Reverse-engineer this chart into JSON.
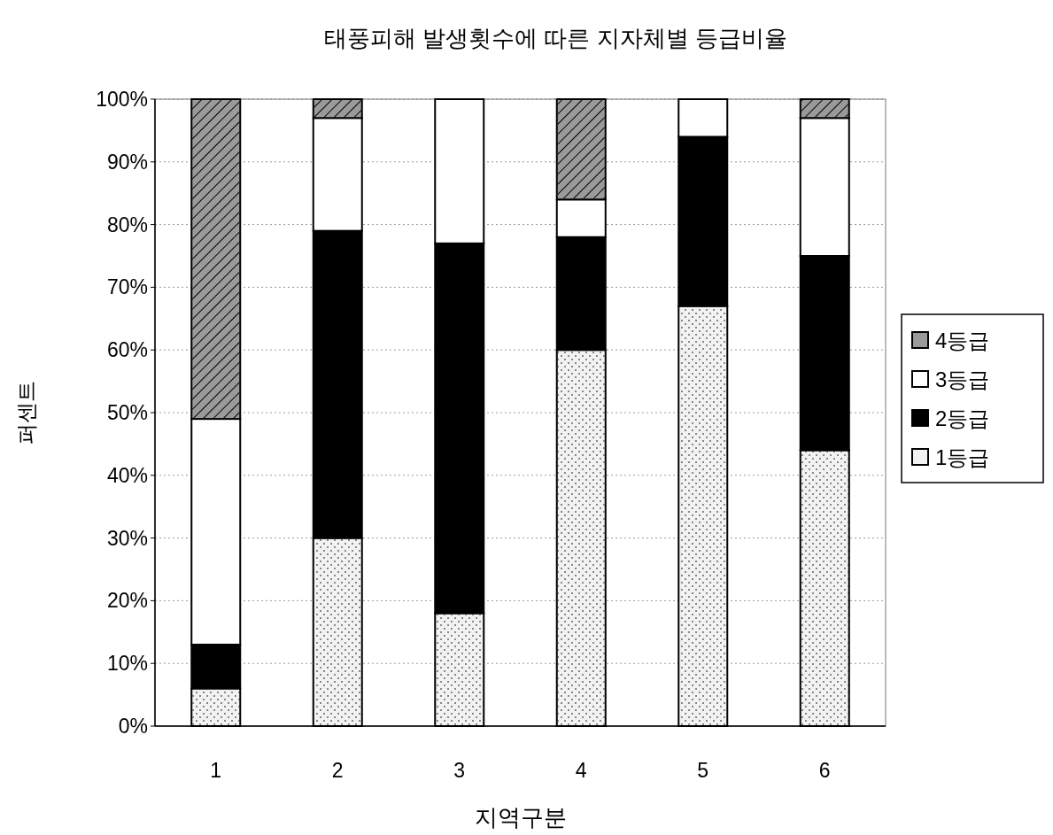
{
  "chart_data": {
    "type": "bar",
    "title": "태풍피해 발생횟수에 따른 지자체별 등급비율",
    "xlabel": "지역구분",
    "ylabel": "퍼센트",
    "categories": [
      "1",
      "2",
      "3",
      "4",
      "5",
      "6"
    ],
    "stacked": true,
    "series": [
      {
        "name": "1등급",
        "color": "#f2f2f2",
        "values": [
          6,
          30,
          18,
          60,
          67,
          44
        ]
      },
      {
        "name": "2등급",
        "color": "#000000",
        "values": [
          7,
          49,
          59,
          18,
          27,
          31
        ]
      },
      {
        "name": "3등급",
        "color": "#ffffff",
        "values": [
          36,
          18,
          23,
          6,
          6,
          22
        ]
      },
      {
        "name": "4등급",
        "color": "#9a9a9a",
        "values": [
          51,
          3,
          0,
          16,
          0,
          3
        ]
      }
    ],
    "ylim": [
      0,
      100
    ],
    "yticks": [
      {
        "value": 0,
        "label": "0%"
      },
      {
        "value": 10,
        "label": "10%"
      },
      {
        "value": 20,
        "label": "20%"
      },
      {
        "value": 30,
        "label": "30%"
      },
      {
        "value": 40,
        "label": "40%"
      },
      {
        "value": 50,
        "label": "50%"
      },
      {
        "value": 60,
        "label": "60%"
      },
      {
        "value": 70,
        "label": "70%"
      },
      {
        "value": 80,
        "label": "80%"
      },
      {
        "value": 90,
        "label": "90%"
      },
      {
        "value": 100,
        "label": "100%"
      }
    ],
    "grid": "y",
    "legend": "right"
  }
}
